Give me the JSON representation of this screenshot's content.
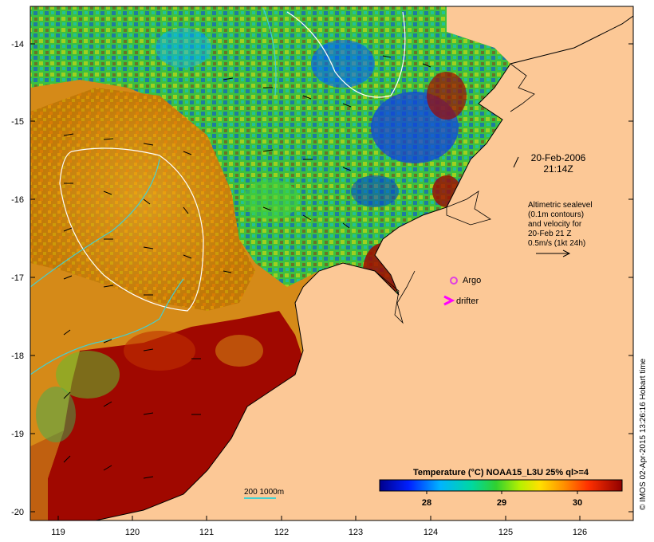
{
  "map": {
    "date": "20-Feb-2006",
    "time": "21:14Z",
    "altimetry_lines": [
      "Altimetric sealevel",
      "(0.1m contours)",
      "and velocity for",
      "20-Feb 21 Z",
      "0.5m/s (1kt 24h)"
    ],
    "argo_label": "Argo",
    "drifter_label": "drifter",
    "depth_label": "200  1000m",
    "colorbar_title": "Temperature (°C) NOAA15_L3U 25% ql>=4",
    "colorbar_ticks": [
      "28",
      "29",
      "30"
    ],
    "lat_labels": [
      "-14",
      "-15",
      "-16",
      "-17",
      "-18",
      "-19",
      "-20"
    ],
    "lon_labels": [
      "119",
      "120",
      "121",
      "122",
      "123",
      "124",
      "125",
      "126"
    ],
    "credit": "© IMOS 02-Apr-2015 13:26:16 Hobart time",
    "colors": {
      "land": "#fcc896",
      "warm_sst": "#a00800",
      "argo": "#e040e0",
      "drifter": "#ff00ff",
      "contour": "#ffffff",
      "depth_line": "#44d0d0"
    }
  }
}
